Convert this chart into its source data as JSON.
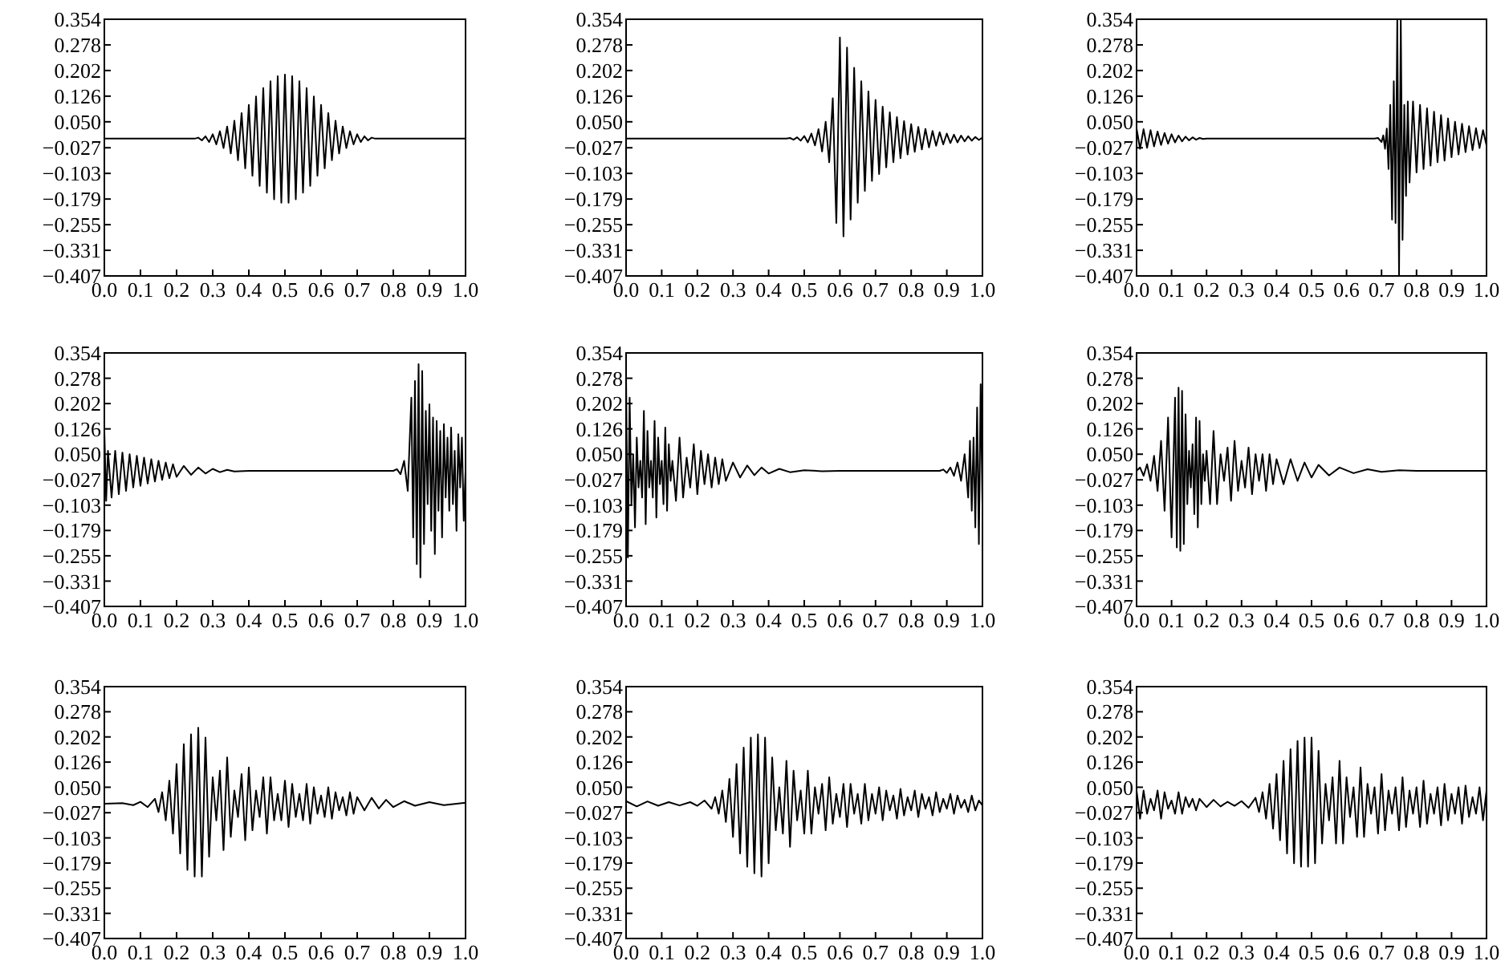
{
  "chart_data": [
    {
      "type": "line",
      "color": "#000000",
      "xlim": [
        0,
        1
      ],
      "ylim": [
        -0.407,
        0.354
      ],
      "xticks": [
        {
          "value": 0,
          "label": "0.0"
        },
        {
          "value": 0.1,
          "label": "0.1"
        },
        {
          "value": 0.2,
          "label": "0.2"
        },
        {
          "value": 0.3,
          "label": "0.3"
        },
        {
          "value": 0.4,
          "label": "0.4"
        },
        {
          "value": 0.5,
          "label": "0.5"
        },
        {
          "value": 0.6,
          "label": "0.6"
        },
        {
          "value": 0.7,
          "label": "0.7"
        },
        {
          "value": 0.8,
          "label": "0.8"
        },
        {
          "value": 0.9,
          "label": "0.9"
        },
        {
          "value": 1,
          "label": "1.0"
        }
      ],
      "yticks": [
        {
          "value": 0.354,
          "label": "0.354"
        },
        {
          "value": 0.278,
          "label": "0.278"
        },
        {
          "value": 0.202,
          "label": "0.202"
        },
        {
          "value": 0.126,
          "label": "0.126"
        },
        {
          "value": 0.05,
          "label": "0.050"
        },
        {
          "value": -0.027,
          "label": "−0.027"
        },
        {
          "value": -0.103,
          "label": "−0.103"
        },
        {
          "value": -0.179,
          "label": "−0.179"
        },
        {
          "value": -0.255,
          "label": "−0.255"
        },
        {
          "value": -0.331,
          "label": "−0.331"
        },
        {
          "value": -0.407,
          "label": "−0.407"
        }
      ],
      "x": [
        0,
        0.25,
        0.26,
        0.27,
        0.28,
        0.29,
        0.3,
        0.31,
        0.32,
        0.33,
        0.34,
        0.35,
        0.36,
        0.37,
        0.38,
        0.39,
        0.4,
        0.41,
        0.42,
        0.43,
        0.44,
        0.45,
        0.46,
        0.47,
        0.48,
        0.49,
        0.5,
        0.51,
        0.52,
        0.53,
        0.54,
        0.55,
        0.56,
        0.57,
        0.58,
        0.59,
        0.6,
        0.61,
        0.62,
        0.63,
        0.64,
        0.65,
        0.66,
        0.67,
        0.68,
        0.69,
        0.7,
        0.71,
        0.72,
        0.73,
        0.74,
        0.75,
        1
      ],
      "values": [
        0,
        0,
        0.003,
        -0.005,
        0.007,
        -0.01,
        0.013,
        -0.017,
        0.022,
        -0.028,
        0.036,
        -0.044,
        0.053,
        -0.064,
        0.076,
        -0.088,
        0.1,
        -0.11,
        0.125,
        -0.14,
        0.15,
        -0.16,
        0.17,
        -0.18,
        0.185,
        -0.19,
        0.19,
        -0.19,
        0.185,
        -0.18,
        0.17,
        -0.16,
        0.15,
        -0.14,
        0.125,
        -0.11,
        0.1,
        -0.088,
        0.076,
        -0.064,
        0.053,
        -0.044,
        0.036,
        -0.028,
        0.022,
        -0.017,
        0.013,
        -0.01,
        0.007,
        -0.005,
        0.003,
        0,
        0
      ]
    },
    {
      "type": "line",
      "color": "#000000",
      "xlim": [
        0,
        1
      ],
      "ylim": [
        -0.407,
        0.354
      ],
      "xticks": [
        {
          "value": 0,
          "label": "0.0"
        },
        {
          "value": 0.1,
          "label": "0.1"
        },
        {
          "value": 0.2,
          "label": "0.2"
        },
        {
          "value": 0.3,
          "label": "0.3"
        },
        {
          "value": 0.4,
          "label": "0.4"
        },
        {
          "value": 0.5,
          "label": "0.5"
        },
        {
          "value": 0.6,
          "label": "0.6"
        },
        {
          "value": 0.7,
          "label": "0.7"
        },
        {
          "value": 0.8,
          "label": "0.8"
        },
        {
          "value": 0.9,
          "label": "0.9"
        },
        {
          "value": 1,
          "label": "1.0"
        }
      ],
      "yticks": [
        {
          "value": 0.354,
          "label": "0.354"
        },
        {
          "value": 0.278,
          "label": "0.278"
        },
        {
          "value": 0.202,
          "label": "0.202"
        },
        {
          "value": 0.126,
          "label": "0.126"
        },
        {
          "value": 0.05,
          "label": "0.050"
        },
        {
          "value": -0.027,
          "label": "−0.027"
        },
        {
          "value": -0.103,
          "label": "−0.103"
        },
        {
          "value": -0.179,
          "label": "−0.179"
        },
        {
          "value": -0.255,
          "label": "−0.255"
        },
        {
          "value": -0.331,
          "label": "−0.331"
        },
        {
          "value": -0.407,
          "label": "−0.407"
        }
      ],
      "x": [
        0,
        0.45,
        0.46,
        0.47,
        0.48,
        0.49,
        0.5,
        0.51,
        0.52,
        0.53,
        0.54,
        0.55,
        0.56,
        0.57,
        0.58,
        0.59,
        0.6,
        0.61,
        0.62,
        0.63,
        0.64,
        0.65,
        0.66,
        0.67,
        0.68,
        0.69,
        0.7,
        0.71,
        0.72,
        0.73,
        0.74,
        0.75,
        0.76,
        0.77,
        0.78,
        0.79,
        0.8,
        0.81,
        0.82,
        0.83,
        0.84,
        0.85,
        0.86,
        0.87,
        0.88,
        0.89,
        0.9,
        0.91,
        0.92,
        0.93,
        0.94,
        0.95,
        0.96,
        0.97,
        0.98,
        0.99,
        1
      ],
      "values": [
        0,
        0,
        0.002,
        -0.003,
        0.004,
        -0.006,
        0.008,
        -0.011,
        0.015,
        -0.02,
        0.028,
        -0.038,
        0.05,
        -0.07,
        0.12,
        -0.25,
        0.3,
        -0.29,
        0.27,
        -0.24,
        0.21,
        -0.19,
        0.17,
        -0.155,
        0.14,
        -0.125,
        0.115,
        -0.105,
        0.095,
        -0.085,
        0.078,
        -0.07,
        0.064,
        -0.058,
        0.052,
        -0.047,
        0.043,
        -0.039,
        0.035,
        -0.032,
        0.029,
        -0.026,
        0.023,
        -0.021,
        0.019,
        -0.017,
        0.015,
        -0.013,
        0.012,
        -0.011,
        0.009,
        -0.008,
        0.007,
        -0.006,
        0.005,
        -0.004,
        0.003
      ]
    },
    {
      "type": "line",
      "color": "#000000",
      "xlim": [
        0,
        1
      ],
      "ylim": [
        -0.407,
        0.354
      ],
      "xticks": [
        {
          "value": 0,
          "label": "0.0"
        },
        {
          "value": 0.1,
          "label": "0.1"
        },
        {
          "value": 0.2,
          "label": "0.2"
        },
        {
          "value": 0.3,
          "label": "0.3"
        },
        {
          "value": 0.4,
          "label": "0.4"
        },
        {
          "value": 0.5,
          "label": "0.5"
        },
        {
          "value": 0.6,
          "label": "0.6"
        },
        {
          "value": 0.7,
          "label": "0.7"
        },
        {
          "value": 0.8,
          "label": "0.8"
        },
        {
          "value": 0.9,
          "label": "0.9"
        },
        {
          "value": 1,
          "label": "1.0"
        }
      ],
      "yticks": [
        {
          "value": 0.354,
          "label": "0.354"
        },
        {
          "value": 0.278,
          "label": "0.278"
        },
        {
          "value": 0.202,
          "label": "0.202"
        },
        {
          "value": 0.126,
          "label": "0.126"
        },
        {
          "value": 0.05,
          "label": "0.050"
        },
        {
          "value": -0.027,
          "label": "−0.027"
        },
        {
          "value": -0.103,
          "label": "−0.103"
        },
        {
          "value": -0.179,
          "label": "−0.179"
        },
        {
          "value": -0.255,
          "label": "−0.255"
        },
        {
          "value": -0.331,
          "label": "−0.331"
        },
        {
          "value": -0.407,
          "label": "−0.407"
        }
      ],
      "x": [
        0,
        0.01,
        0.02,
        0.03,
        0.04,
        0.05,
        0.06,
        0.07,
        0.08,
        0.09,
        0.1,
        0.11,
        0.12,
        0.13,
        0.14,
        0.15,
        0.16,
        0.17,
        0.18,
        0.19,
        0.2,
        0.68,
        0.69,
        0.7,
        0.705,
        0.71,
        0.715,
        0.72,
        0.725,
        0.73,
        0.735,
        0.74,
        0.745,
        0.75,
        0.755,
        0.76,
        0.765,
        0.77,
        0.775,
        0.78,
        0.79,
        0.8,
        0.81,
        0.82,
        0.83,
        0.84,
        0.85,
        0.86,
        0.87,
        0.88,
        0.89,
        0.9,
        0.91,
        0.92,
        0.93,
        0.94,
        0.95,
        0.96,
        0.97,
        0.98,
        0.99,
        1
      ],
      "values": [
        0.03,
        -0.03,
        0.028,
        -0.027,
        0.025,
        -0.023,
        0.021,
        -0.019,
        0.017,
        -0.015,
        0.013,
        -0.011,
        0.009,
        -0.008,
        0.006,
        -0.005,
        0.004,
        -0.003,
        0.002,
        -0.001,
        0,
        0,
        0.002,
        -0.01,
        0.01,
        -0.03,
        0.03,
        -0.09,
        0.1,
        -0.24,
        0.17,
        -0.25,
        0.354,
        -0.407,
        0.354,
        -0.3,
        0.1,
        -0.17,
        0.11,
        -0.13,
        0.11,
        -0.1,
        0.1,
        -0.09,
        0.09,
        -0.08,
        0.08,
        -0.07,
        0.07,
        -0.065,
        0.06,
        -0.055,
        0.05,
        -0.047,
        0.044,
        -0.04,
        0.037,
        -0.034,
        0.031,
        -0.028,
        0.025,
        -0.02
      ]
    },
    {
      "type": "line",
      "color": "#000000",
      "xlim": [
        0,
        1
      ],
      "ylim": [
        -0.407,
        0.354
      ],
      "xticks": [
        {
          "value": 0,
          "label": "0.0"
        },
        {
          "value": 0.1,
          "label": "0.1"
        },
        {
          "value": 0.2,
          "label": "0.2"
        },
        {
          "value": 0.3,
          "label": "0.3"
        },
        {
          "value": 0.4,
          "label": "0.4"
        },
        {
          "value": 0.5,
          "label": "0.5"
        },
        {
          "value": 0.6,
          "label": "0.6"
        },
        {
          "value": 0.7,
          "label": "0.7"
        },
        {
          "value": 0.8,
          "label": "0.8"
        },
        {
          "value": 0.9,
          "label": "0.9"
        },
        {
          "value": 1,
          "label": "1.0"
        }
      ],
      "yticks": [
        {
          "value": 0.354,
          "label": "0.354"
        },
        {
          "value": 0.278,
          "label": "0.278"
        },
        {
          "value": 0.202,
          "label": "0.202"
        },
        {
          "value": 0.126,
          "label": "0.126"
        },
        {
          "value": 0.05,
          "label": "0.050"
        },
        {
          "value": -0.027,
          "label": "−0.027"
        },
        {
          "value": -0.103,
          "label": "−0.103"
        },
        {
          "value": -0.179,
          "label": "−0.179"
        },
        {
          "value": -0.255,
          "label": "−0.255"
        },
        {
          "value": -0.331,
          "label": "−0.331"
        },
        {
          "value": -0.407,
          "label": "−0.407"
        }
      ],
      "x": [
        0,
        0.005,
        0.01,
        0.02,
        0.03,
        0.04,
        0.05,
        0.06,
        0.07,
        0.08,
        0.09,
        0.1,
        0.11,
        0.12,
        0.13,
        0.14,
        0.15,
        0.16,
        0.17,
        0.18,
        0.19,
        0.2,
        0.22,
        0.24,
        0.26,
        0.28,
        0.3,
        0.32,
        0.34,
        0.36,
        0.4,
        0.8,
        0.81,
        0.82,
        0.83,
        0.84,
        0.85,
        0.855,
        0.86,
        0.865,
        0.87,
        0.875,
        0.88,
        0.885,
        0.89,
        0.895,
        0.9,
        0.905,
        0.91,
        0.915,
        0.92,
        0.925,
        0.93,
        0.935,
        0.94,
        0.945,
        0.95,
        0.955,
        0.96,
        0.965,
        0.97,
        0.975,
        0.98,
        0.985,
        0.99,
        0.995,
        1
      ],
      "values": [
        0.12,
        -0.09,
        0.06,
        -0.08,
        0.06,
        -0.07,
        0.055,
        -0.06,
        0.05,
        -0.05,
        0.045,
        -0.045,
        0.04,
        -0.038,
        0.035,
        -0.032,
        0.03,
        -0.027,
        0.025,
        -0.022,
        0.02,
        -0.018,
        0.015,
        -0.012,
        0.01,
        -0.008,
        0.006,
        -0.004,
        0.003,
        -0.002,
        0,
        0,
        0.005,
        -0.01,
        0.03,
        -0.06,
        0.22,
        -0.2,
        0.27,
        -0.28,
        0.32,
        -0.32,
        0.3,
        -0.22,
        0.18,
        -0.1,
        0.2,
        -0.18,
        0.16,
        -0.25,
        0.15,
        -0.12,
        0.12,
        -0.2,
        0.14,
        -0.08,
        0.1,
        -0.12,
        0.13,
        -0.1,
        0.06,
        -0.18,
        0.11,
        -0.05,
        0.1,
        -0.15,
        0
      ]
    },
    {
      "type": "line",
      "color": "#000000",
      "xlim": [
        0,
        1
      ],
      "ylim": [
        -0.407,
        0.354
      ],
      "xticks": [
        {
          "value": 0,
          "label": "0.0"
        },
        {
          "value": 0.1,
          "label": "0.1"
        },
        {
          "value": 0.2,
          "label": "0.2"
        },
        {
          "value": 0.3,
          "label": "0.3"
        },
        {
          "value": 0.4,
          "label": "0.4"
        },
        {
          "value": 0.5,
          "label": "0.5"
        },
        {
          "value": 0.6,
          "label": "0.6"
        },
        {
          "value": 0.7,
          "label": "0.7"
        },
        {
          "value": 0.8,
          "label": "0.8"
        },
        {
          "value": 0.9,
          "label": "0.9"
        },
        {
          "value": 1,
          "label": "1.0"
        }
      ],
      "yticks": [
        {
          "value": 0.354,
          "label": "0.354"
        },
        {
          "value": 0.278,
          "label": "0.278"
        },
        {
          "value": 0.202,
          "label": "0.202"
        },
        {
          "value": 0.126,
          "label": "0.126"
        },
        {
          "value": 0.05,
          "label": "0.050"
        },
        {
          "value": -0.027,
          "label": "−0.027"
        },
        {
          "value": -0.103,
          "label": "−0.103"
        },
        {
          "value": -0.179,
          "label": "−0.179"
        },
        {
          "value": -0.255,
          "label": "−0.255"
        },
        {
          "value": -0.331,
          "label": "−0.331"
        },
        {
          "value": -0.407,
          "label": "−0.407"
        }
      ],
      "x": [
        0,
        0.005,
        0.01,
        0.015,
        0.02,
        0.025,
        0.03,
        0.035,
        0.04,
        0.045,
        0.05,
        0.055,
        0.06,
        0.065,
        0.07,
        0.075,
        0.08,
        0.085,
        0.09,
        0.095,
        0.1,
        0.105,
        0.11,
        0.115,
        0.12,
        0.125,
        0.13,
        0.14,
        0.15,
        0.16,
        0.17,
        0.18,
        0.19,
        0.2,
        0.21,
        0.22,
        0.23,
        0.24,
        0.25,
        0.26,
        0.27,
        0.28,
        0.3,
        0.32,
        0.34,
        0.36,
        0.38,
        0.4,
        0.43,
        0.46,
        0.5,
        0.55,
        0.6,
        0.88,
        0.89,
        0.9,
        0.91,
        0.92,
        0.93,
        0.94,
        0.95,
        0.96,
        0.965,
        0.97,
        0.975,
        0.98,
        0.985,
        0.99,
        0.995,
        1
      ],
      "values": [
        0.28,
        -0.26,
        0.22,
        -0.1,
        0.05,
        -0.17,
        0.1,
        -0.05,
        0.03,
        -0.08,
        0.18,
        -0.16,
        0.12,
        -0.05,
        0.03,
        -0.08,
        0.15,
        -0.14,
        0.1,
        -0.04,
        0.03,
        -0.1,
        0.13,
        -0.12,
        0.08,
        -0.03,
        0.03,
        -0.09,
        0.1,
        -0.08,
        0.04,
        -0.05,
        0.08,
        -0.07,
        0.06,
        -0.04,
        0.05,
        -0.05,
        0.04,
        -0.04,
        0.035,
        -0.03,
        0.025,
        -0.02,
        0.016,
        -0.013,
        0.01,
        -0.008,
        0.006,
        -0.004,
        0.002,
        -0.001,
        0,
        0,
        0.004,
        -0.006,
        0.01,
        -0.015,
        0.025,
        -0.03,
        0.05,
        -0.08,
        0.09,
        -0.12,
        0.1,
        -0.17,
        0.19,
        -0.22,
        0.26,
        -0.1
      ]
    },
    {
      "type": "line",
      "color": "#000000",
      "xlim": [
        0,
        1
      ],
      "ylim": [
        -0.407,
        0.354
      ],
      "xticks": [
        {
          "value": 0,
          "label": "0.0"
        },
        {
          "value": 0.1,
          "label": "0.1"
        },
        {
          "value": 0.2,
          "label": "0.2"
        },
        {
          "value": 0.3,
          "label": "0.3"
        },
        {
          "value": 0.4,
          "label": "0.4"
        },
        {
          "value": 0.5,
          "label": "0.5"
        },
        {
          "value": 0.6,
          "label": "0.6"
        },
        {
          "value": 0.7,
          "label": "0.7"
        },
        {
          "value": 0.8,
          "label": "0.8"
        },
        {
          "value": 0.9,
          "label": "0.9"
        },
        {
          "value": 1,
          "label": "1.0"
        }
      ],
      "yticks": [
        {
          "value": 0.354,
          "label": "0.354"
        },
        {
          "value": 0.278,
          "label": "0.278"
        },
        {
          "value": 0.202,
          "label": "0.202"
        },
        {
          "value": 0.126,
          "label": "0.126"
        },
        {
          "value": 0.05,
          "label": "0.050"
        },
        {
          "value": -0.027,
          "label": "−0.027"
        },
        {
          "value": -0.103,
          "label": "−0.103"
        },
        {
          "value": -0.179,
          "label": "−0.179"
        },
        {
          "value": -0.255,
          "label": "−0.255"
        },
        {
          "value": -0.331,
          "label": "−0.331"
        },
        {
          "value": -0.407,
          "label": "−0.407"
        }
      ],
      "x": [
        0,
        0.01,
        0.02,
        0.03,
        0.04,
        0.05,
        0.06,
        0.07,
        0.08,
        0.09,
        0.1,
        0.11,
        0.115,
        0.12,
        0.125,
        0.13,
        0.135,
        0.14,
        0.145,
        0.15,
        0.155,
        0.16,
        0.165,
        0.17,
        0.175,
        0.18,
        0.185,
        0.19,
        0.195,
        0.2,
        0.21,
        0.22,
        0.23,
        0.24,
        0.25,
        0.26,
        0.27,
        0.28,
        0.29,
        0.3,
        0.31,
        0.32,
        0.33,
        0.34,
        0.35,
        0.36,
        0.37,
        0.38,
        0.39,
        0.4,
        0.42,
        0.44,
        0.46,
        0.48,
        0.5,
        0.52,
        0.55,
        0.58,
        0.62,
        0.66,
        0.7,
        0.75,
        0.8,
        1
      ],
      "values": [
        0,
        0.01,
        -0.015,
        0.02,
        -0.03,
        0.045,
        -0.06,
        0.09,
        -0.12,
        0.16,
        -0.2,
        0.22,
        -0.23,
        0.25,
        -0.24,
        0.24,
        -0.22,
        0.17,
        -0.1,
        0.06,
        -0.05,
        0.08,
        -0.13,
        0.16,
        -0.17,
        0.15,
        -0.1,
        0.05,
        -0.03,
        0.06,
        -0.1,
        0.12,
        -0.1,
        0.05,
        -0.03,
        0.07,
        -0.09,
        0.09,
        -0.06,
        0.03,
        -0.05,
        0.07,
        -0.07,
        0.05,
        -0.03,
        0.05,
        -0.06,
        0.05,
        -0.04,
        0.035,
        -0.04,
        0.035,
        -0.03,
        0.025,
        -0.02,
        0.018,
        -0.014,
        0.01,
        -0.007,
        0.005,
        -0.003,
        0.002,
        0,
        0
      ]
    },
    {
      "type": "line",
      "color": "#000000",
      "xlim": [
        0,
        1
      ],
      "ylim": [
        -0.407,
        0.354
      ],
      "xticks": [
        {
          "value": 0,
          "label": "0.0"
        },
        {
          "value": 0.1,
          "label": "0.1"
        },
        {
          "value": 0.2,
          "label": "0.2"
        },
        {
          "value": 0.3,
          "label": "0.3"
        },
        {
          "value": 0.4,
          "label": "0.4"
        },
        {
          "value": 0.5,
          "label": "0.5"
        },
        {
          "value": 0.6,
          "label": "0.6"
        },
        {
          "value": 0.7,
          "label": "0.7"
        },
        {
          "value": 0.8,
          "label": "0.8"
        },
        {
          "value": 0.9,
          "label": "0.9"
        },
        {
          "value": 1,
          "label": "1.0"
        }
      ],
      "yticks": [
        {
          "value": 0.354,
          "label": "0.354"
        },
        {
          "value": 0.278,
          "label": "0.278"
        },
        {
          "value": 0.202,
          "label": "0.202"
        },
        {
          "value": 0.126,
          "label": "0.126"
        },
        {
          "value": 0.05,
          "label": "0.050"
        },
        {
          "value": -0.027,
          "label": "−0.027"
        },
        {
          "value": -0.103,
          "label": "−0.103"
        },
        {
          "value": -0.179,
          "label": "−0.179"
        },
        {
          "value": -0.255,
          "label": "−0.255"
        },
        {
          "value": -0.331,
          "label": "−0.331"
        },
        {
          "value": -0.407,
          "label": "−0.407"
        }
      ],
      "x": [
        0,
        0.05,
        0.08,
        0.1,
        0.12,
        0.14,
        0.15,
        0.16,
        0.17,
        0.18,
        0.19,
        0.2,
        0.21,
        0.22,
        0.23,
        0.24,
        0.25,
        0.26,
        0.27,
        0.28,
        0.29,
        0.3,
        0.31,
        0.32,
        0.33,
        0.34,
        0.35,
        0.36,
        0.37,
        0.38,
        0.39,
        0.4,
        0.41,
        0.42,
        0.43,
        0.44,
        0.45,
        0.46,
        0.47,
        0.48,
        0.49,
        0.5,
        0.51,
        0.52,
        0.53,
        0.54,
        0.55,
        0.56,
        0.57,
        0.58,
        0.59,
        0.6,
        0.61,
        0.62,
        0.63,
        0.64,
        0.65,
        0.66,
        0.67,
        0.68,
        0.69,
        0.7,
        0.72,
        0.74,
        0.76,
        0.78,
        0.8,
        0.83,
        0.86,
        0.9,
        0.94,
        1
      ],
      "values": [
        0,
        0.002,
        -0.004,
        0.006,
        -0.01,
        0.015,
        -0.025,
        0.035,
        -0.05,
        0.07,
        -0.09,
        0.12,
        -0.15,
        0.18,
        -0.2,
        0.21,
        -0.22,
        0.23,
        -0.22,
        0.2,
        -0.16,
        0.08,
        -0.05,
        0.1,
        -0.14,
        0.14,
        -0.1,
        0.04,
        -0.04,
        0.09,
        -0.11,
        0.11,
        -0.08,
        0.04,
        -0.04,
        0.08,
        -0.09,
        0.08,
        -0.05,
        0.03,
        -0.05,
        0.07,
        -0.07,
        0.06,
        -0.04,
        0.03,
        -0.05,
        0.06,
        -0.06,
        0.05,
        -0.03,
        0.025,
        -0.04,
        0.05,
        -0.045,
        0.035,
        -0.02,
        0.02,
        -0.035,
        0.035,
        -0.03,
        0.02,
        -0.02,
        0.018,
        -0.014,
        0.012,
        -0.01,
        0.008,
        -0.006,
        0.005,
        -0.004,
        0.003
      ]
    },
    {
      "type": "line",
      "color": "#000000",
      "xlim": [
        0,
        1
      ],
      "ylim": [
        -0.407,
        0.354
      ],
      "xticks": [
        {
          "value": 0,
          "label": "0.0"
        },
        {
          "value": 0.1,
          "label": "0.1"
        },
        {
          "value": 0.2,
          "label": "0.2"
        },
        {
          "value": 0.3,
          "label": "0.3"
        },
        {
          "value": 0.4,
          "label": "0.4"
        },
        {
          "value": 0.5,
          "label": "0.5"
        },
        {
          "value": 0.6,
          "label": "0.6"
        },
        {
          "value": 0.7,
          "label": "0.7"
        },
        {
          "value": 0.8,
          "label": "0.8"
        },
        {
          "value": 0.9,
          "label": "0.9"
        },
        {
          "value": 1,
          "label": "1.0"
        }
      ],
      "yticks": [
        {
          "value": 0.354,
          "label": "0.354"
        },
        {
          "value": 0.278,
          "label": "0.278"
        },
        {
          "value": 0.202,
          "label": "0.202"
        },
        {
          "value": 0.126,
          "label": "0.126"
        },
        {
          "value": 0.05,
          "label": "0.050"
        },
        {
          "value": -0.027,
          "label": "−0.027"
        },
        {
          "value": -0.103,
          "label": "−0.103"
        },
        {
          "value": -0.179,
          "label": "−0.179"
        },
        {
          "value": -0.255,
          "label": "−0.255"
        },
        {
          "value": -0.331,
          "label": "−0.331"
        },
        {
          "value": -0.407,
          "label": "−0.407"
        }
      ],
      "x": [
        0,
        0.03,
        0.06,
        0.09,
        0.12,
        0.15,
        0.18,
        0.2,
        0.22,
        0.24,
        0.25,
        0.26,
        0.27,
        0.28,
        0.29,
        0.3,
        0.31,
        0.32,
        0.33,
        0.34,
        0.35,
        0.36,
        0.37,
        0.38,
        0.39,
        0.4,
        0.41,
        0.42,
        0.43,
        0.44,
        0.45,
        0.46,
        0.47,
        0.48,
        0.49,
        0.5,
        0.51,
        0.52,
        0.53,
        0.54,
        0.55,
        0.56,
        0.57,
        0.58,
        0.59,
        0.6,
        0.61,
        0.62,
        0.63,
        0.64,
        0.65,
        0.66,
        0.67,
        0.68,
        0.69,
        0.7,
        0.71,
        0.72,
        0.73,
        0.74,
        0.75,
        0.76,
        0.77,
        0.78,
        0.79,
        0.8,
        0.81,
        0.82,
        0.83,
        0.84,
        0.85,
        0.86,
        0.87,
        0.88,
        0.89,
        0.9,
        0.91,
        0.92,
        0.93,
        0.94,
        0.95,
        0.96,
        0.97,
        0.98,
        0.99,
        1
      ],
      "values": [
        0.008,
        -0.008,
        0.007,
        -0.006,
        0.005,
        -0.005,
        0.005,
        -0.006,
        0.01,
        -0.015,
        0.02,
        -0.03,
        0.04,
        -0.055,
        0.075,
        -0.1,
        0.12,
        -0.15,
        0.17,
        -0.19,
        0.2,
        -0.21,
        0.21,
        -0.22,
        0.2,
        -0.18,
        0.14,
        -0.08,
        0.05,
        -0.09,
        0.13,
        -0.13,
        0.1,
        -0.05,
        0.04,
        -0.09,
        0.1,
        -0.09,
        0.05,
        -0.03,
        0.06,
        -0.08,
        0.08,
        -0.06,
        0.03,
        -0.04,
        0.06,
        -0.07,
        0.06,
        -0.03,
        0.03,
        -0.06,
        0.06,
        -0.05,
        0.03,
        -0.03,
        0.05,
        -0.05,
        0.04,
        -0.02,
        0.025,
        -0.045,
        0.045,
        -0.035,
        0.02,
        -0.02,
        0.04,
        -0.04,
        0.03,
        -0.015,
        0.02,
        -0.035,
        0.035,
        -0.025,
        0.015,
        -0.015,
        0.03,
        -0.03,
        0.025,
        -0.012,
        0.012,
        -0.025,
        0.025,
        -0.02,
        0.01,
        -0.005
      ]
    },
    {
      "type": "line",
      "color": "#000000",
      "xlim": [
        0,
        1
      ],
      "ylim": [
        -0.407,
        0.354
      ],
      "xticks": [
        {
          "value": 0,
          "label": "0.0"
        },
        {
          "value": 0.1,
          "label": "0.1"
        },
        {
          "value": 0.2,
          "label": "0.2"
        },
        {
          "value": 0.3,
          "label": "0.3"
        },
        {
          "value": 0.4,
          "label": "0.4"
        },
        {
          "value": 0.5,
          "label": "0.5"
        },
        {
          "value": 0.6,
          "label": "0.6"
        },
        {
          "value": 0.7,
          "label": "0.7"
        },
        {
          "value": 0.8,
          "label": "0.8"
        },
        {
          "value": 0.9,
          "label": "0.9"
        },
        {
          "value": 1,
          "label": "1.0"
        }
      ],
      "yticks": [
        {
          "value": 0.354,
          "label": "0.354"
        },
        {
          "value": 0.278,
          "label": "0.278"
        },
        {
          "value": 0.202,
          "label": "0.202"
        },
        {
          "value": 0.126,
          "label": "0.126"
        },
        {
          "value": 0.05,
          "label": "0.050"
        },
        {
          "value": -0.027,
          "label": "−0.027"
        },
        {
          "value": -0.103,
          "label": "−0.103"
        },
        {
          "value": -0.179,
          "label": "−0.179"
        },
        {
          "value": -0.255,
          "label": "−0.255"
        },
        {
          "value": -0.331,
          "label": "−0.331"
        },
        {
          "value": -0.407,
          "label": "−0.407"
        }
      ],
      "x": [
        0,
        0.01,
        0.02,
        0.03,
        0.04,
        0.05,
        0.06,
        0.07,
        0.08,
        0.09,
        0.1,
        0.11,
        0.12,
        0.13,
        0.14,
        0.15,
        0.16,
        0.17,
        0.18,
        0.2,
        0.22,
        0.24,
        0.26,
        0.28,
        0.3,
        0.32,
        0.34,
        0.35,
        0.36,
        0.37,
        0.38,
        0.39,
        0.4,
        0.41,
        0.42,
        0.43,
        0.44,
        0.45,
        0.46,
        0.47,
        0.48,
        0.49,
        0.5,
        0.51,
        0.52,
        0.53,
        0.54,
        0.55,
        0.56,
        0.57,
        0.58,
        0.59,
        0.6,
        0.61,
        0.62,
        0.63,
        0.64,
        0.65,
        0.66,
        0.67,
        0.68,
        0.69,
        0.7,
        0.71,
        0.72,
        0.73,
        0.74,
        0.75,
        0.76,
        0.77,
        0.78,
        0.79,
        0.8,
        0.81,
        0.82,
        0.83,
        0.84,
        0.85,
        0.86,
        0.87,
        0.88,
        0.89,
        0.9,
        0.91,
        0.92,
        0.93,
        0.94,
        0.95,
        0.96,
        0.97,
        0.98,
        0.99,
        1
      ],
      "values": [
        0.04,
        -0.045,
        0.04,
        -0.03,
        0.015,
        -0.02,
        0.04,
        -0.045,
        0.035,
        -0.015,
        0.01,
        -0.03,
        0.035,
        -0.03,
        0.02,
        -0.01,
        0.015,
        -0.02,
        0.015,
        -0.01,
        0.012,
        -0.008,
        0.006,
        -0.006,
        0.008,
        -0.012,
        0.018,
        -0.025,
        0.035,
        -0.045,
        0.06,
        -0.075,
        0.09,
        -0.11,
        0.13,
        -0.15,
        0.165,
        -0.18,
        0.19,
        -0.19,
        0.2,
        -0.19,
        0.2,
        -0.18,
        0.16,
        -0.12,
        0.06,
        -0.05,
        0.08,
        -0.12,
        0.13,
        -0.12,
        0.08,
        -0.04,
        0.05,
        -0.1,
        0.11,
        -0.1,
        0.06,
        -0.03,
        0.05,
        -0.09,
        0.09,
        -0.08,
        0.04,
        -0.03,
        0.05,
        -0.08,
        0.08,
        -0.07,
        0.04,
        -0.03,
        0.05,
        -0.07,
        0.07,
        -0.06,
        0.03,
        -0.03,
        0.05,
        -0.065,
        0.06,
        -0.05,
        0.03,
        -0.03,
        0.05,
        -0.06,
        0.055,
        -0.04,
        0.02,
        -0.03,
        0.05,
        -0.05,
        0.04
      ]
    }
  ]
}
